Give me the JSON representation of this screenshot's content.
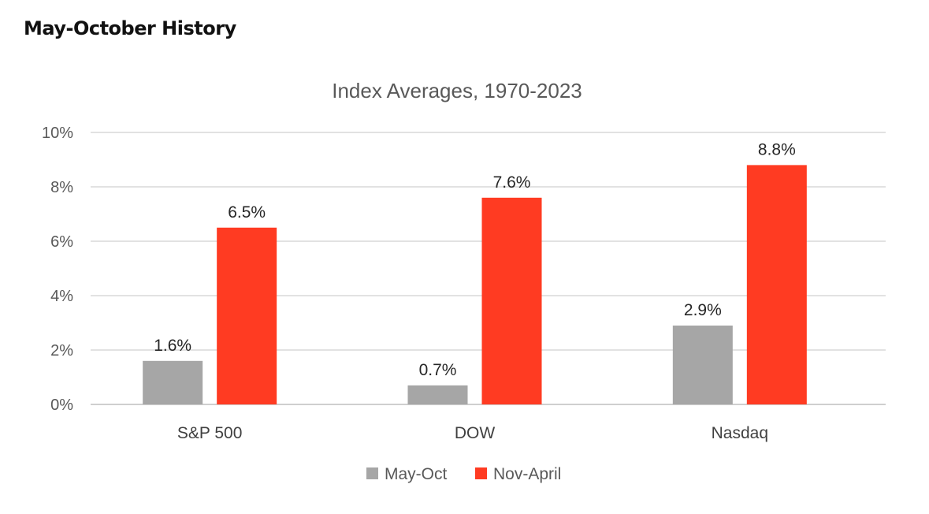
{
  "page": {
    "heading": "May-October History"
  },
  "chart_data": {
    "type": "bar",
    "title": "Index Averages, 1970-2023",
    "categories": [
      "S&P 500",
      "DOW",
      "Nasdaq"
    ],
    "series": [
      {
        "name": "May-Oct",
        "color": "#a6a6a6",
        "values": [
          1.6,
          0.7,
          2.9
        ],
        "labels": [
          "1.6%",
          "0.7%",
          "2.9%"
        ]
      },
      {
        "name": "Nov-April",
        "color": "#ff3b22",
        "values": [
          6.5,
          7.6,
          8.8
        ],
        "labels": [
          "6.5%",
          "7.6%",
          "8.8%"
        ]
      }
    ],
    "y_ticks": [
      0,
      2,
      4,
      6,
      8,
      10
    ],
    "y_tick_labels": [
      "0%",
      "2%",
      "4%",
      "6%",
      "8%",
      "10%"
    ],
    "ylim": [
      0,
      10
    ],
    "xlabel": "",
    "ylabel": "",
    "grid": true,
    "legend_position": "bottom"
  }
}
